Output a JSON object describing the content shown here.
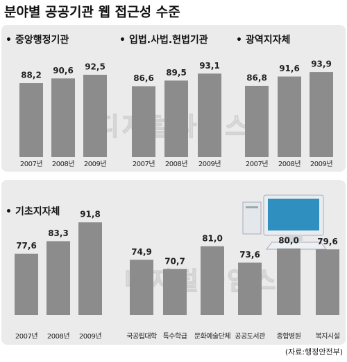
{
  "title": "분야별 공공기관 웹 접근성 수준",
  "source": "(자료:행정안전부)",
  "watermark": "디지털타임스",
  "chart_data": [
    {
      "type": "bar",
      "title": "중앙행정기관",
      "categories": [
        "2007년",
        "2008년",
        "2009년"
      ],
      "values": [
        88.2,
        90.6,
        92.5
      ],
      "value_labels": [
        "88,2",
        "90,6",
        "92,5"
      ],
      "color": "#8c8c8c",
      "ylim": [
        50,
        100
      ]
    },
    {
      "type": "bar",
      "title": "입법.사법.헌법기관",
      "categories": [
        "2007년",
        "2008년",
        "2009년"
      ],
      "values": [
        86.6,
        89.5,
        93.1
      ],
      "value_labels": [
        "86,6",
        "89,5",
        "93,1"
      ],
      "color": "#8c8c8c",
      "ylim": [
        50,
        100
      ]
    },
    {
      "type": "bar",
      "title": "광역지자체",
      "categories": [
        "2007년",
        "2008년",
        "2009년"
      ],
      "values": [
        86.8,
        91.6,
        93.9
      ],
      "value_labels": [
        "86,8",
        "91,6",
        "93,9"
      ],
      "color": "#8c8c8c",
      "ylim": [
        50,
        100
      ]
    },
    {
      "type": "bar",
      "title": "기초지자체",
      "categories": [
        "2007년",
        "2008년",
        "2009년"
      ],
      "values": [
        77.6,
        83.3,
        91.8
      ],
      "value_labels": [
        "77,6",
        "83,3",
        "91,8"
      ],
      "color": "#8c8c8c",
      "ylim": [
        50,
        100
      ]
    },
    {
      "type": "bar",
      "categories": [
        "국공립대학",
        "특수학급",
        "문화예술단체",
        "공공도서관",
        "종합병원",
        "복지시설"
      ],
      "values": [
        74.9,
        70.7,
        81.0,
        73.6,
        80.0,
        79.6
      ],
      "value_labels": [
        "74,9",
        "70,7",
        "81,0",
        "73,6",
        "80,0",
        "79,6"
      ],
      "color": "#8c8c8c",
      "ylim": [
        50,
        100
      ]
    }
  ]
}
